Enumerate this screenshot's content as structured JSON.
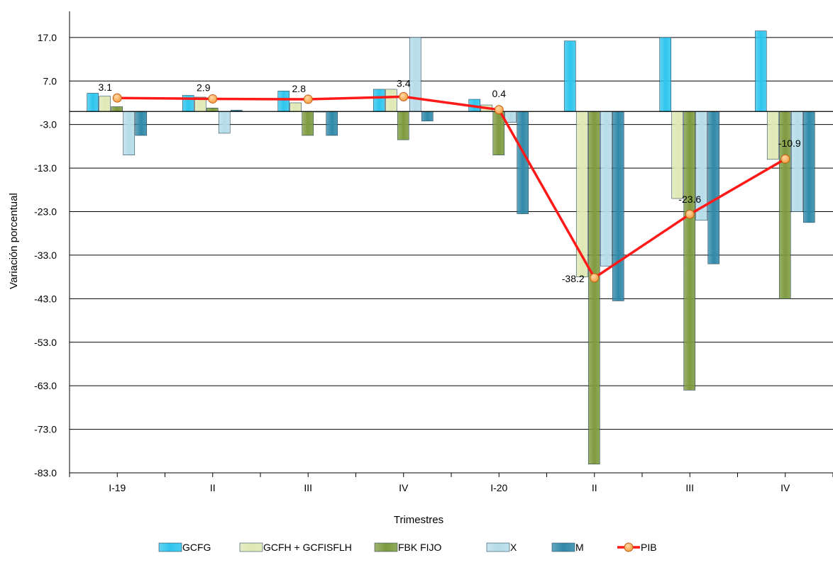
{
  "chart_data": {
    "type": "bar",
    "title": "",
    "xlabel": "Trimestres",
    "ylabel": "Variación porcentual",
    "ylim": [
      -83.0,
      23.0
    ],
    "yticks": [
      17.0,
      7.0,
      -3.0,
      -13.0,
      -23.0,
      -33.0,
      -43.0,
      -53.0,
      -63.0,
      -73.0,
      -83.0
    ],
    "ytick_labels": [
      "17.0",
      "7.0",
      "-3.0",
      "-13.0",
      "-23.0",
      "-33.0",
      "-43.0",
      "-53.0",
      "-63.0",
      "-73.0",
      "-83.0"
    ],
    "grid": true,
    "legend_position": "bottom",
    "categories": [
      "I-19",
      "II",
      "III",
      "IV",
      "I-20",
      "II",
      "III",
      "IV"
    ],
    "series": [
      {
        "name": "GCFG",
        "type": "bar",
        "color": "#2ec5ee",
        "values": [
          4.2,
          3.7,
          4.7,
          5.1,
          2.8,
          16.2,
          17.0,
          18.5
        ]
      },
      {
        "name": "GCFH + GCFISFLH",
        "type": "bar",
        "color": "#dfe8b4",
        "values": [
          3.5,
          3.3,
          2.0,
          5.1,
          1.5,
          -38.0,
          -20.0,
          -11.0
        ]
      },
      {
        "name": "FBK FIJO",
        "type": "bar",
        "color": "#7e9a3e",
        "values": [
          1.1,
          0.8,
          -5.5,
          -6.5,
          -10.0,
          -81.0,
          -64.0,
          -43.0
        ]
      },
      {
        "name": "X",
        "type": "bar",
        "color": "#b5dce9",
        "values": [
          -10.0,
          -5.0,
          0.0,
          17.0,
          -2.5,
          -35.5,
          -25.0,
          -23.0
        ]
      },
      {
        "name": "M",
        "type": "bar",
        "color": "#3089a8",
        "values": [
          -5.5,
          0.3,
          -5.5,
          -2.2,
          -23.5,
          -43.5,
          -35.0,
          -25.5
        ]
      },
      {
        "name": "PIB",
        "type": "line",
        "color": "#ff1a1a",
        "marker_color": "#f39a3a",
        "values": [
          3.1,
          2.9,
          2.8,
          3.4,
          0.4,
          -38.2,
          -23.6,
          -10.9
        ]
      }
    ],
    "data_labels": [
      "3.1",
      "2.9",
      "2.8",
      "3.4",
      "0.4",
      "-38.2",
      "-23.6",
      "-10.9"
    ]
  }
}
